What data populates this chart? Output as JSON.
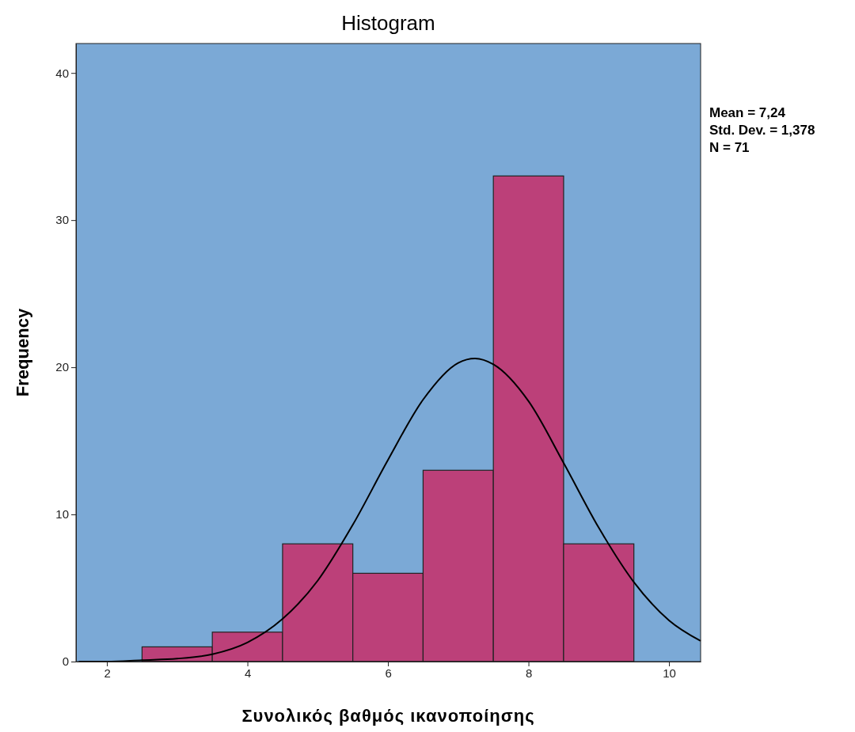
{
  "chart_data": {
    "type": "histogram",
    "title": "Histogram",
    "xlabel": "Συνολικός βαθμός ικανοποίησης",
    "ylabel": "Frequency",
    "bins": [
      2.5,
      3.5,
      4.5,
      5.5,
      6.5,
      7.5,
      8.5,
      9.5
    ],
    "values": [
      1,
      2,
      8,
      6,
      13,
      33,
      8
    ],
    "color": "#bc4079",
    "series": [
      {
        "type": "line",
        "color": "#000000",
        "x": [
          1.6,
          2,
          2.5,
          3,
          3.5,
          4,
          4.5,
          5,
          5.5,
          6,
          6.5,
          7,
          7.24,
          7.5,
          8,
          8.5,
          9,
          9.5,
          10,
          10.45
        ],
        "values": [
          0,
          0,
          0.1,
          0.2,
          0.5,
          1.3,
          2.9,
          5.5,
          9.3,
          13.7,
          17.8,
          20.3,
          20.6,
          20.2,
          17.7,
          13.5,
          9.1,
          5.4,
          2.8,
          1.4
        ]
      }
    ],
    "xlim": [
      1.56,
      10.45
    ],
    "xticks": [
      2,
      4,
      6,
      8,
      10
    ],
    "ylim": [
      0,
      42
    ],
    "yticks": [
      0,
      10,
      20,
      30,
      40
    ],
    "grid": false,
    "annotations": [
      "Mean = 7,24",
      "Std. Dev. = 1,378",
      "N = 71"
    ]
  }
}
